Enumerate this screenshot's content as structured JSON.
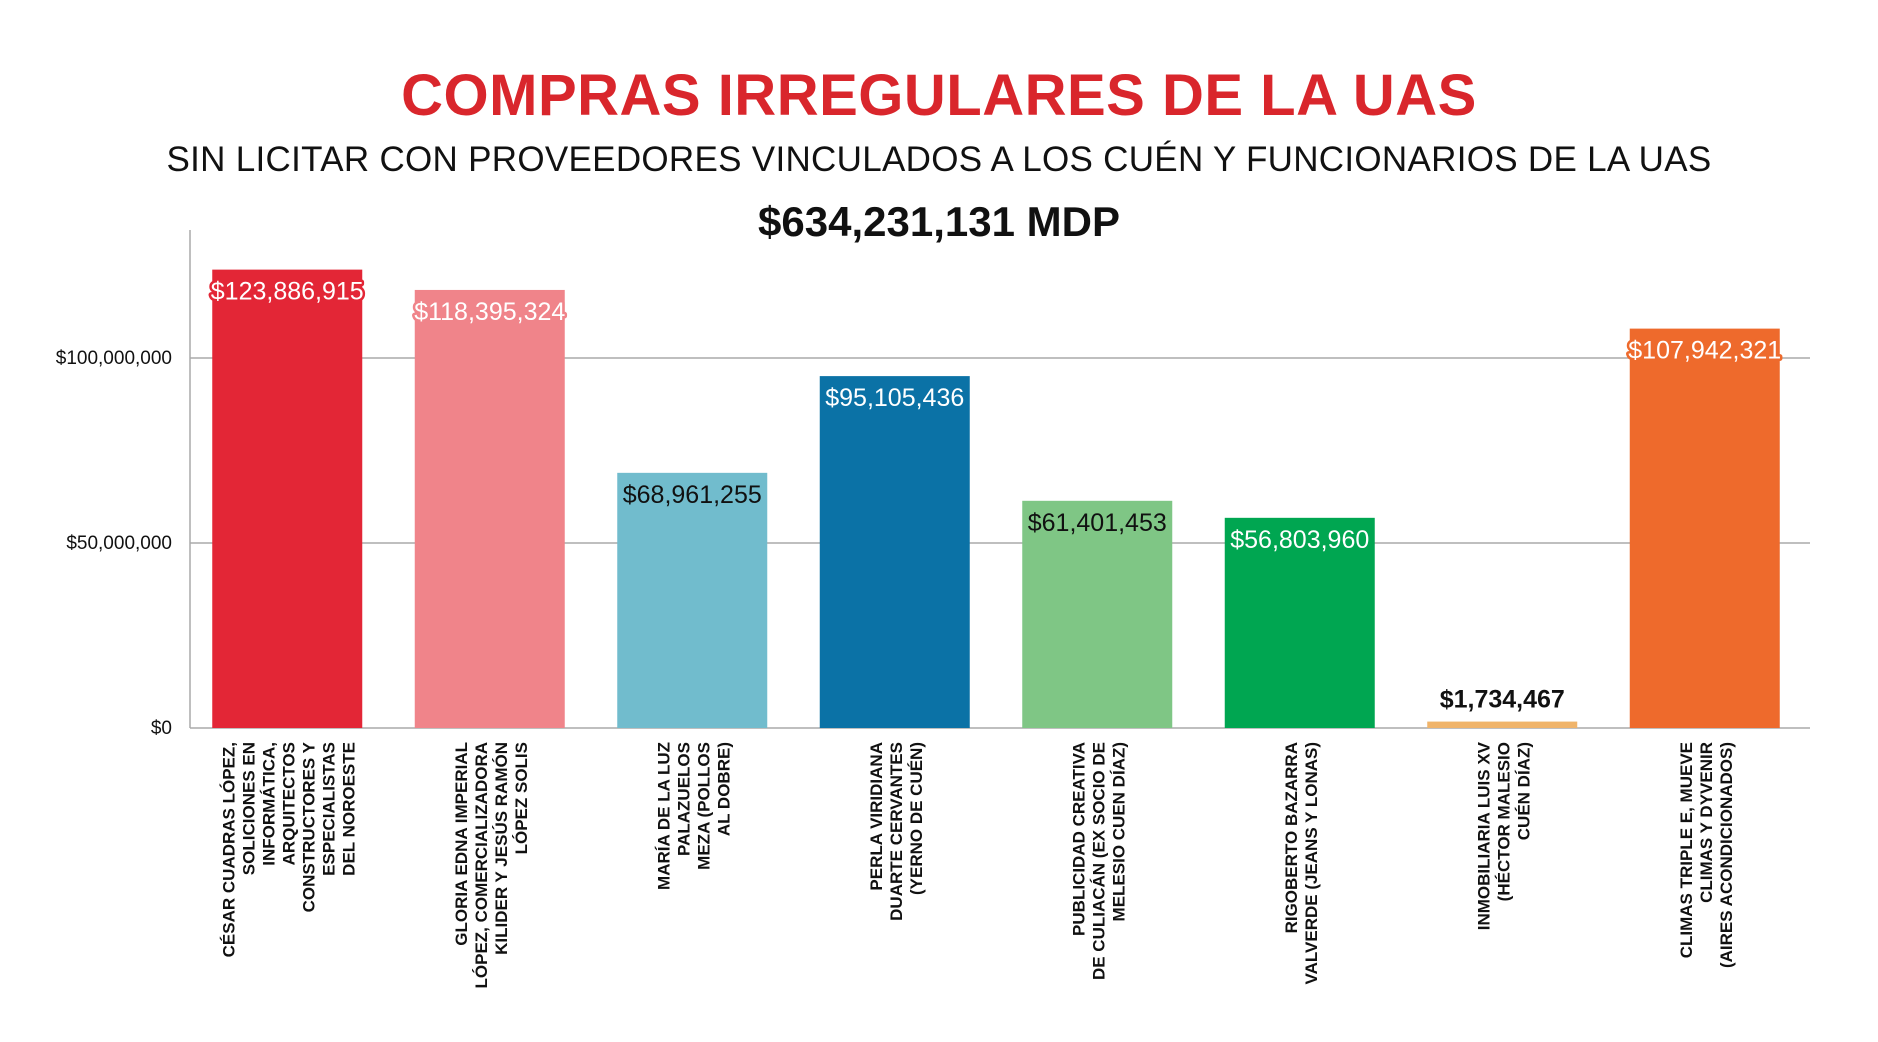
{
  "header": {
    "title": "COMPRAS IRREGULARES DE LA UAS",
    "subtitle": "SIN LICITAR CON PROVEEDORES VINCULADOS A LOS CUÉN Y FUNCIONARIOS DE LA UAS",
    "total": "$634,231,131 MDP"
  },
  "chart_data": {
    "type": "bar",
    "title": "COMPRAS IRREGULARES DE LA UAS",
    "subtitle": "SIN LICITAR CON PROVEEDORES VINCULADOS A LOS CUÉN Y FUNCIONARIOS DE LA UAS",
    "xlabel": "",
    "ylabel": "",
    "ylim": [
      0,
      134000000
    ],
    "yticks": [
      {
        "value": 0,
        "label": "$0"
      },
      {
        "value": 50000000,
        "label": "$50,000,000"
      },
      {
        "value": 100000000,
        "label": "$100,000,000"
      }
    ],
    "grid": true,
    "categories": [
      [
        "CÉSAR CUADRAS LÓPEZ,",
        "SOLICIONES EN",
        "INFORMÁTICA,",
        "ARQUITECTOS",
        "CONSTRUCTORES Y",
        "ESPECIALISTAS",
        "DEL NOROESTE"
      ],
      [
        "GLORIA EDNA IMPERIAL",
        "LÓPEZ, COMERCIALIZADORA",
        "KILIDER Y JESÚS RAMÓN",
        "LÓPEZ SOLIS"
      ],
      [
        "MARÍA DE LA LUZ",
        "PALAZUELOS",
        "MEZA (POLLOS",
        "AL DOBRE)"
      ],
      [
        "PERLA VIRIDIANA",
        "DUARTE CERVANTES",
        "(YERNO DE CUÉN)"
      ],
      [
        "PUBLICIDAD CREATIVA",
        "DE CULIACÁN (EX SOCIO DE",
        "MELESIO CUEN DÍAZ)"
      ],
      [
        "RIGOBERTO BAZARRA",
        "VALVERDE (JEANS Y LONAS)"
      ],
      [
        "INMOBILIARIA LUIS XV",
        "(HÉCTOR MALESIO",
        "CUÉN DÍAZ)"
      ],
      [
        "CLIMAS TRIPLE E, MUEVE",
        "CLIMAS Y DYVENIR",
        "(AIRES ACONDICIONADOS)"
      ]
    ],
    "values": [
      123886915,
      118395324,
      68961255,
      95105436,
      61401453,
      56803960,
      1734467,
      107942321
    ],
    "value_labels": [
      "$123,886,915",
      "$118,395,324",
      "$68,961,255",
      "$95,105,436",
      "$61,401,453",
      "$56,803,960",
      "$1,734,467",
      "$107,942,321"
    ],
    "colors": [
      "#e32636",
      "#f0848a",
      "#71bccd",
      "#0b72a6",
      "#7fc685",
      "#00a651",
      "#f0b46a",
      "#ee6a2c"
    ],
    "label_colors": [
      "#ffffff",
      "#ffffff",
      "#111111",
      "#ffffff",
      "#111111",
      "#ffffff",
      "#111111",
      "#ffffff"
    ],
    "label_outline_colors": [
      "#e32636",
      "#f0848a",
      "",
      "",
      "",
      "#00a651",
      "",
      "#ee6a2c"
    ],
    "axis_color": "#aaaaaa",
    "grid_color": "#aaaaaa"
  }
}
